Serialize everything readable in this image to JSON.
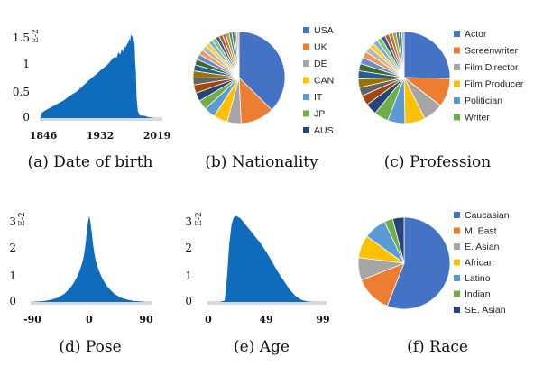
{
  "chart_data": [
    {
      "type": "area",
      "caption": "(a) Date of birth",
      "multiplier": "E-2",
      "x_ticks": [
        "1846",
        "1932",
        "2019"
      ],
      "y_ticks": [
        "0",
        "0.5",
        "1",
        "1.5"
      ],
      "xlim": [
        1846,
        2019
      ],
      "ylim": [
        0,
        1.55
      ],
      "x": [
        1846,
        1850,
        1860,
        1870,
        1880,
        1890,
        1900,
        1910,
        1920,
        1930,
        1940,
        1945,
        1950,
        1955,
        1960,
        1962,
        1965,
        1968,
        1970,
        1972,
        1974,
        1976,
        1978,
        1980,
        1982,
        1983,
        1984,
        1985,
        1986,
        1988,
        1989,
        1990,
        1991,
        1992,
        1993,
        1995,
        1998,
        2000,
        2005,
        2010,
        2019
      ],
      "y": [
        0.08,
        0.12,
        0.18,
        0.24,
        0.3,
        0.38,
        0.45,
        0.55,
        0.65,
        0.74,
        0.84,
        0.88,
        0.93,
        1.0,
        1.05,
        1.02,
        1.12,
        1.08,
        1.18,
        1.12,
        1.22,
        1.2,
        1.25,
        1.28,
        1.36,
        1.3,
        1.4,
        1.42,
        1.38,
        1.42,
        1.3,
        1.25,
        0.95,
        0.8,
        0.35,
        0.12,
        0.05,
        0.04,
        0.04,
        0.02,
        0.0
      ]
    },
    {
      "type": "pie",
      "caption": "(b) Nationality",
      "legend": [
        "USA",
        "UK",
        "DE",
        "CAN",
        "IT",
        "JP",
        "AUS"
      ],
      "values": [
        38,
        12,
        5,
        5,
        4,
        3.5,
        3,
        3,
        2.5,
        2.5,
        2.2,
        2,
        2,
        1.8,
        1.8,
        1.6,
        1.5,
        1.5,
        1.3,
        1.3,
        1.2,
        1.2,
        1,
        1,
        0.8,
        0.8
      ],
      "colors": [
        "#4472C4",
        "#ED7D31",
        "#A5A5A5",
        "#FFC000",
        "#5B9BD5",
        "#70AD47",
        "#264478",
        "#9E480E",
        "#636363",
        "#997300",
        "#255E91",
        "#43682B",
        "#698ED0",
        "#F1975A",
        "#B7B7B7",
        "#FFCD33",
        "#7CAFDD",
        "#8CC168",
        "#335AA1",
        "#C55A11",
        "#848484",
        "#CC9A00",
        "#327DC2",
        "#5A8A39",
        "#8FAADC",
        "#F4B183"
      ]
    },
    {
      "type": "pie",
      "caption": "(c) Profession",
      "legend": [
        "Actor",
        "Screenwriter",
        "Film Director",
        "Film Producer",
        "Politician",
        "Writer"
      ],
      "values": [
        25,
        10,
        7,
        7,
        6,
        5,
        4,
        3.5,
        3,
        3,
        2.8,
        2.5,
        2.3,
        2.2,
        2,
        1.8,
        1.7,
        1.6,
        1.5,
        1.4,
        1.3,
        1.2,
        1,
        1,
        0.8
      ],
      "colors": [
        "#4472C4",
        "#ED7D31",
        "#A5A5A5",
        "#FFC000",
        "#5B9BD5",
        "#70AD47",
        "#264478",
        "#9E480E",
        "#636363",
        "#997300",
        "#255E91",
        "#43682B",
        "#698ED0",
        "#F1975A",
        "#B7B7B7",
        "#FFCD33",
        "#7CAFDD",
        "#8CC168",
        "#335AA1",
        "#C55A11",
        "#848484",
        "#CC9A00",
        "#327DC2",
        "#5A8A39",
        "#8FAADC"
      ]
    },
    {
      "type": "area",
      "caption": "(d) Pose",
      "multiplier": "E-2",
      "x_ticks": [
        "-90",
        "0",
        "90"
      ],
      "y_ticks": [
        "0",
        "1",
        "2",
        "3"
      ],
      "xlim": [
        -90,
        90
      ],
      "ylim": [
        0,
        3.2
      ],
      "x": [
        -90,
        -80,
        -70,
        -60,
        -50,
        -40,
        -30,
        -25,
        -20,
        -15,
        -10,
        -8,
        -6,
        -4,
        -2,
        0,
        2,
        4,
        6,
        8,
        10,
        15,
        20,
        25,
        30,
        40,
        50,
        60,
        70,
        80,
        90
      ],
      "y": [
        0.0,
        0.02,
        0.04,
        0.08,
        0.15,
        0.28,
        0.5,
        0.65,
        0.85,
        1.1,
        1.45,
        1.7,
        2.0,
        2.45,
        2.8,
        3.0,
        2.75,
        2.4,
        2.0,
        1.7,
        1.45,
        1.1,
        0.85,
        0.65,
        0.5,
        0.28,
        0.15,
        0.08,
        0.04,
        0.02,
        0.0
      ]
    },
    {
      "type": "area",
      "caption": "(e) Age",
      "multiplier": "E-2",
      "x_ticks": [
        "0",
        "49",
        "99"
      ],
      "y_ticks": [
        "0",
        "1",
        "2",
        "3"
      ],
      "xlim": [
        0,
        99
      ],
      "ylim": [
        0,
        3.2
      ],
      "x": [
        0,
        10,
        14,
        16,
        18,
        20,
        22,
        24,
        26,
        28,
        30,
        33,
        36,
        40,
        45,
        50,
        55,
        60,
        65,
        70,
        75,
        80,
        85,
        90,
        99
      ],
      "y": [
        0.0,
        0.0,
        0.05,
        0.8,
        2.0,
        2.7,
        2.95,
        3.0,
        2.95,
        2.9,
        2.8,
        2.65,
        2.5,
        2.3,
        2.05,
        1.75,
        1.4,
        1.05,
        0.75,
        0.45,
        0.22,
        0.08,
        0.02,
        0.0,
        0.0
      ]
    },
    {
      "type": "pie",
      "caption": "(f) Race",
      "legend": [
        "Caucasian",
        "M. East",
        "E. Asian",
        "African",
        "Latino",
        "Indian",
        "SE. Asian"
      ],
      "values": [
        56,
        13,
        8,
        8,
        8,
        3,
        4
      ],
      "colors": [
        "#4472C4",
        "#ED7D31",
        "#A5A5A5",
        "#FFC000",
        "#5B9BD5",
        "#70AD47",
        "#264478"
      ]
    }
  ]
}
